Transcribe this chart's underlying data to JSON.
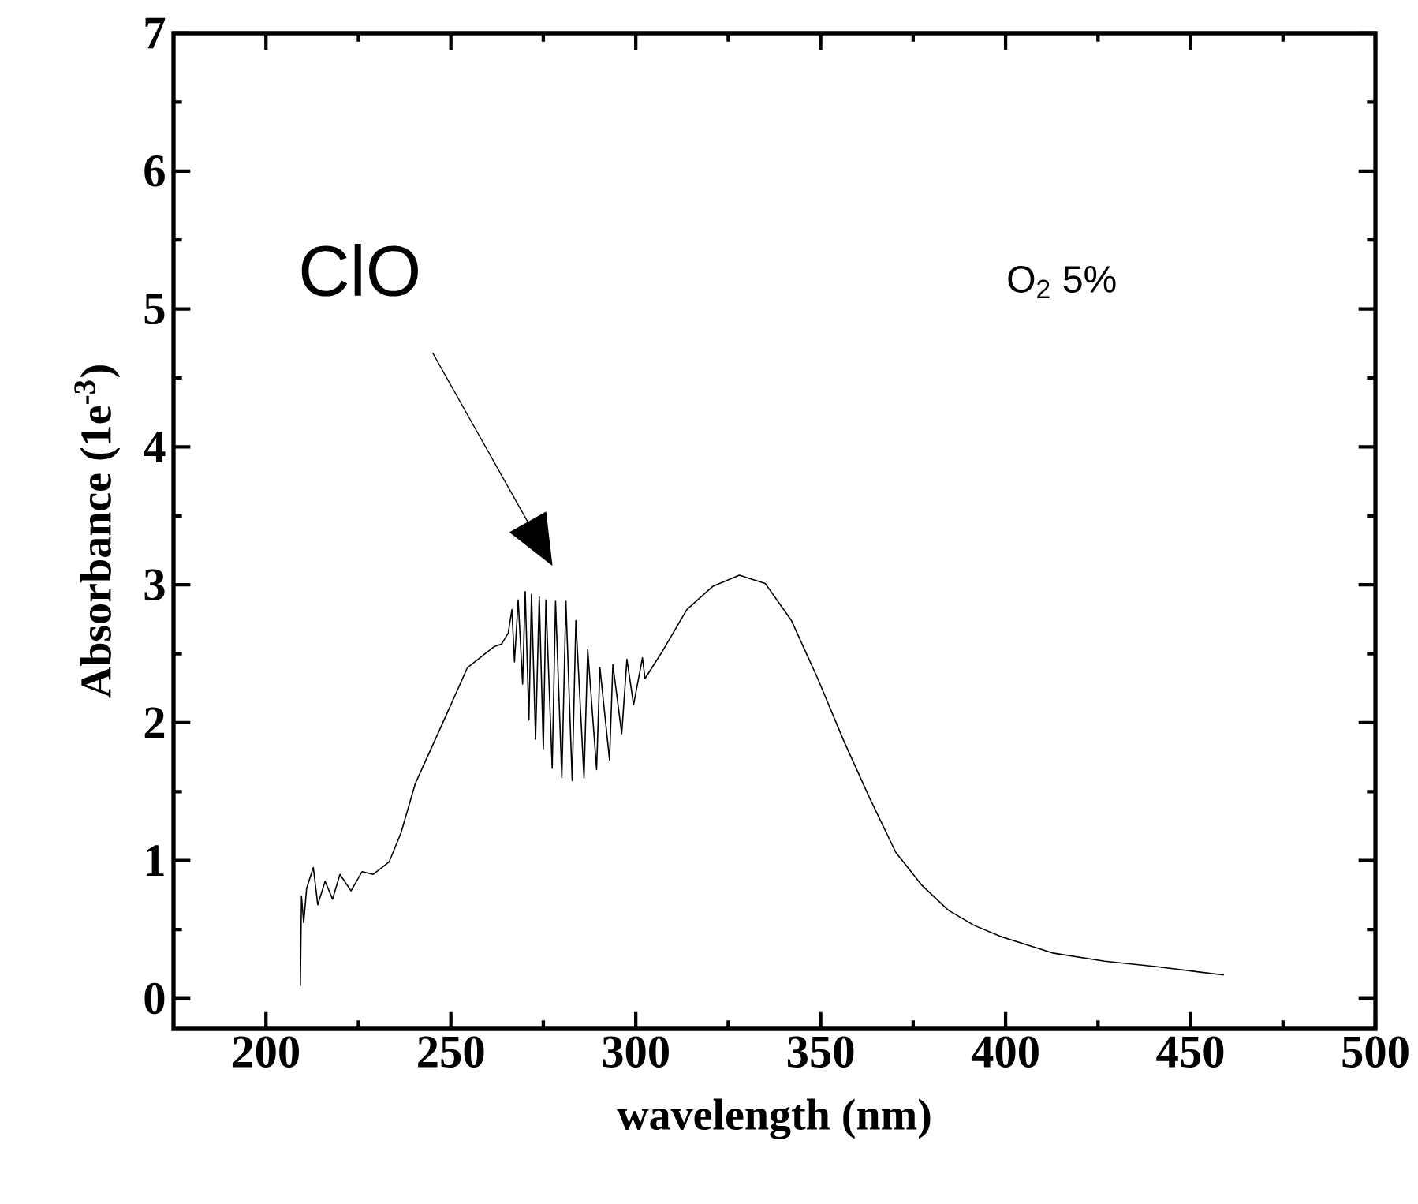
{
  "chart_data": {
    "type": "line",
    "xlabel": "wavelength (nm)",
    "ylabel": "Absorbance   (1e$^{-3}$)",
    "xlim": [
      175,
      500
    ],
    "ylim": [
      -0.22,
      7
    ],
    "xticks": [
      200,
      {
        "value": 225,
        "label": null
      },
      250,
      {
        "value": 275,
        "label": null
      },
      300,
      {
        "value": 325,
        "label": null
      },
      350,
      {
        "value": 375,
        "label": null
      },
      400,
      {
        "value": 425,
        "label": null
      },
      450,
      {
        "value": 475,
        "label": null
      },
      500
    ],
    "yticks": [
      0,
      {
        "value": 0.5,
        "label": null
      },
      1,
      {
        "value": 1.5,
        "label": null
      },
      2,
      {
        "value": 2.5,
        "label": null
      },
      3,
      {
        "value": 3.5,
        "label": null
      },
      4,
      {
        "value": 4.5,
        "label": null
      },
      5,
      {
        "value": 5.5,
        "label": null
      },
      6,
      {
        "value": 6.5,
        "label": null
      },
      7
    ],
    "annotations": [
      "ClO",
      "O$_{2}$ 5%"
    ],
    "series": [
      {
        "color": "#000000",
        "x": [
          209.3,
          209.6,
          210.2,
          211,
          212.8,
          214,
          216,
          218,
          220,
          223,
          226,
          229,
          233.3,
          236.5,
          240.4,
          247.5,
          254.5,
          261.6,
          263.7,
          265.5,
          266.5,
          267.2,
          268.2,
          269.4,
          270.1,
          271.1,
          271.8,
          272.9,
          273.9,
          275.0,
          275.7,
          277.4,
          278.3,
          280.0,
          281.1,
          282.8,
          283.8,
          286.0,
          287.0,
          289.4,
          290.3,
          292.9,
          293.8,
          296.2,
          297.6,
          299.4,
          301.8,
          302.5,
          306.8,
          313.8,
          320.9,
          328.0,
          335.0,
          342.1,
          349.2,
          356.2,
          363.3,
          370.3,
          377.4,
          384.5,
          391.5,
          398.6,
          412.7,
          426.8,
          441.0,
          459.0
        ],
        "values": [
          0.09,
          0.74,
          0.55,
          0.8,
          0.95,
          0.68,
          0.85,
          0.72,
          0.9,
          0.78,
          0.92,
          0.9,
          0.99,
          1.2,
          1.56,
          1.98,
          2.4,
          2.55,
          2.57,
          2.65,
          2.82,
          2.44,
          2.89,
          2.28,
          2.95,
          2.02,
          2.93,
          1.88,
          2.91,
          1.81,
          2.89,
          1.67,
          2.88,
          1.6,
          2.88,
          1.58,
          2.74,
          1.6,
          2.53,
          1.66,
          2.4,
          1.73,
          2.42,
          1.92,
          2.46,
          2.13,
          2.47,
          2.32,
          2.5,
          2.82,
          2.99,
          3.07,
          3.01,
          2.74,
          2.32,
          1.87,
          1.45,
          1.06,
          0.82,
          0.64,
          0.53,
          0.45,
          0.33,
          0.27,
          0.23,
          0.17
        ]
      }
    ]
  }
}
